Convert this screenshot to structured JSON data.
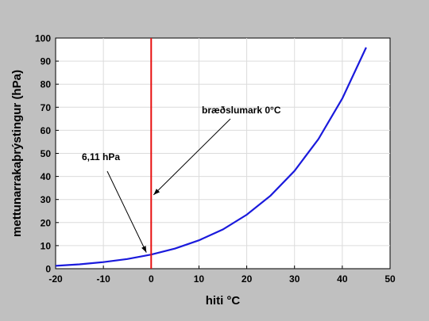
{
  "chart_data": {
    "type": "line",
    "xlabel": "hiti °C",
    "ylabel": "mettunarrakaþrýstingur (hPa)",
    "xlim": [
      -20,
      50
    ],
    "ylim": [
      0,
      100
    ],
    "xticks": [
      -20,
      -10,
      0,
      10,
      20,
      30,
      40,
      50
    ],
    "yticks": [
      0,
      10,
      20,
      30,
      40,
      50,
      60,
      70,
      80,
      90,
      100
    ],
    "grid": true,
    "series": [
      {
        "color": "#1a1adc",
        "x": [
          -20,
          -15,
          -10,
          -5,
          0,
          5,
          10,
          15,
          20,
          25,
          30,
          35,
          40,
          45
        ],
        "y": [
          1.25,
          1.9,
          2.86,
          4.2,
          6.11,
          8.72,
          12.3,
          17.0,
          23.4,
          31.7,
          42.4,
          56.2,
          73.8,
          95.9
        ]
      }
    ],
    "vline": {
      "x": 0,
      "color": "#e81010"
    },
    "annotations": [
      {
        "text": "bræðslumark 0°C",
        "point": [
          0.5,
          32
        ]
      },
      {
        "text": "6,11 hPa",
        "point": [
          -1,
          7
        ]
      }
    ]
  }
}
